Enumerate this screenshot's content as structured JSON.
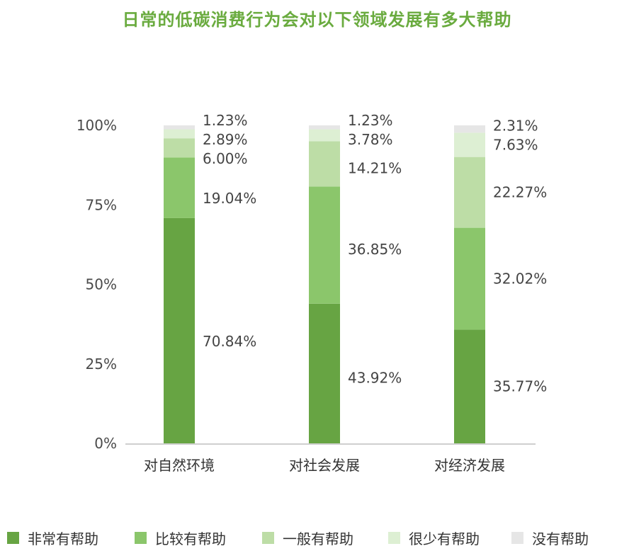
{
  "chart_data": {
    "type": "bar",
    "stacked": true,
    "title": "日常的低碳消费行为会对以下领域发展有多大帮助",
    "categories": [
      "对自然环境",
      "对社会发展",
      "对经济发展"
    ],
    "series": [
      {
        "name": "非常有帮助",
        "color": "#67a443",
        "values": [
          70.84,
          43.92,
          35.77
        ]
      },
      {
        "name": "比较有帮助",
        "color": "#8bc66b",
        "values": [
          19.04,
          36.85,
          32.02
        ]
      },
      {
        "name": "一般有帮助",
        "color": "#bddda6",
        "values": [
          6.0,
          14.21,
          22.27
        ]
      },
      {
        "name": "很少有帮助",
        "color": "#ddefd3",
        "values": [
          2.89,
          3.78,
          7.63
        ]
      },
      {
        "name": "没有帮助",
        "color": "#e6e6e6",
        "values": [
          1.23,
          1.23,
          2.31
        ]
      }
    ],
    "value_labels": [
      [
        "70.84%",
        "43.92%",
        "35.77%"
      ],
      [
        "19.04%",
        "36.85%",
        "32.02%"
      ],
      [
        "6.00%",
        "14.21%",
        "22.27%"
      ],
      [
        "2.89%",
        "3.78%",
        "7.63%"
      ],
      [
        "1.23%",
        "1.23%",
        "2.31%"
      ]
    ],
    "yticks": [
      "0%",
      "25%",
      "50%",
      "75%",
      "100%"
    ],
    "ylim": [
      0,
      100
    ],
    "legend_position": "bottom",
    "grid": false
  }
}
